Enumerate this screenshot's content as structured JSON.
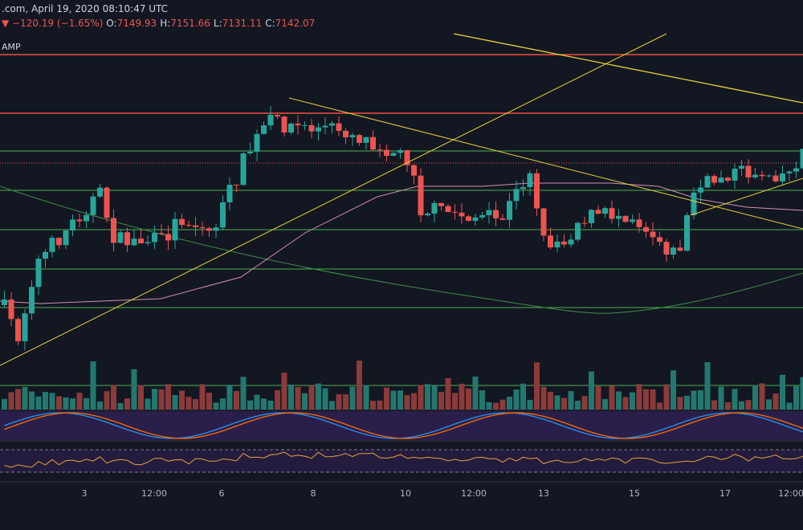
{
  "header": {
    "source": ".com, April 19, 2020 08:10:47 UTC",
    "change": "▼ −120.19 (−1.65%)",
    "ohlc": [
      {
        "label": "O:",
        "value": "7149.93"
      },
      {
        "label": "H:",
        "value": "7151.66"
      },
      {
        "label": "L:",
        "value": "7131.11"
      },
      {
        "label": "C:",
        "value": "7142.07"
      }
    ],
    "indicator": "AMP"
  },
  "x_axis": {
    "labels": [
      "3",
      "12:00",
      "6",
      "8",
      "10",
      "12:00",
      "13",
      "15",
      "17",
      "12:00"
    ]
  }
}
